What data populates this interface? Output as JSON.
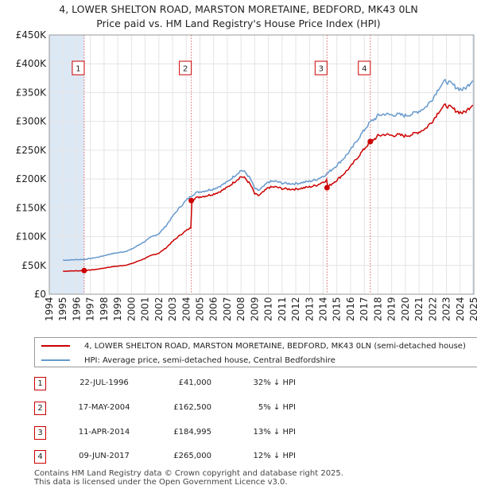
{
  "chart_data": {
    "type": "line",
    "title": "4, LOWER SHELTON ROAD, MARSTON MORETAINE, BEDFORD, MK43 0LN",
    "subtitle": "Price paid vs. HM Land Registry's House Price Index (HPI)",
    "xlim": [
      1994.0,
      2025.0
    ],
    "ylim": [
      0,
      450000
    ],
    "y_ticks": [
      0,
      50000,
      100000,
      150000,
      200000,
      250000,
      300000,
      350000,
      400000,
      450000
    ],
    "y_tick_labels": [
      "£0",
      "£50K",
      "£100K",
      "£150K",
      "£200K",
      "£250K",
      "£300K",
      "£350K",
      "£400K",
      "£450K"
    ],
    "x_ticks": [
      1994,
      1995,
      1996,
      1997,
      1998,
      1999,
      2000,
      2001,
      2002,
      2003,
      2004,
      2005,
      2006,
      2007,
      2008,
      2009,
      2010,
      2011,
      2012,
      2013,
      2014,
      2015,
      2016,
      2017,
      2018,
      2019,
      2020,
      2021,
      2022,
      2023,
      2024,
      2025
    ],
    "x_tick_labels": [
      "1994",
      "1995",
      "1996",
      "1997",
      "1998",
      "1999",
      "2000",
      "2001",
      "2002",
      "2003",
      "2004",
      "2005",
      "2006",
      "2007",
      "2008",
      "2009",
      "2010",
      "2011",
      "2012",
      "2013",
      "2014",
      "2015",
      "2016",
      "2017",
      "2018",
      "2019",
      "2020",
      "2021",
      "2022",
      "2023",
      "2024",
      "2025"
    ],
    "colors": {
      "property": "#cc0000",
      "hpi": "#6699cc",
      "shade": "#dde8f5",
      "marker_line": "#dd6666"
    },
    "hpi_anchors": [
      [
        1995.0,
        59000
      ],
      [
        1996.0,
        60000
      ],
      [
        1996.55,
        60500
      ],
      [
        1997.0,
        62000
      ],
      [
        1997.5,
        64000
      ],
      [
        1998.0,
        67000
      ],
      [
        1998.5,
        70000
      ],
      [
        1999.0,
        72000
      ],
      [
        1999.5,
        74000
      ],
      [
        2000.0,
        78000
      ],
      [
        2000.5,
        85000
      ],
      [
        2001.0,
        92000
      ],
      [
        2001.5,
        100000
      ],
      [
        2002.0,
        105000
      ],
      [
        2002.5,
        118000
      ],
      [
        2003.0,
        135000
      ],
      [
        2003.5,
        150000
      ],
      [
        2004.0,
        163000
      ],
      [
        2004.37,
        171000
      ],
      [
        2004.7,
        176000
      ],
      [
        2005.0,
        178000
      ],
      [
        2005.5,
        180000
      ],
      [
        2006.0,
        183000
      ],
      [
        2006.5,
        188000
      ],
      [
        2007.0,
        195000
      ],
      [
        2007.5,
        205000
      ],
      [
        2008.0,
        215000
      ],
      [
        2008.3,
        212000
      ],
      [
        2008.7,
        200000
      ],
      [
        2009.0,
        183000
      ],
      [
        2009.3,
        180000
      ],
      [
        2009.7,
        188000
      ],
      [
        2010.0,
        195000
      ],
      [
        2010.5,
        196000
      ],
      [
        2011.0,
        193000
      ],
      [
        2011.5,
        192000
      ],
      [
        2012.0,
        192000
      ],
      [
        2012.5,
        194000
      ],
      [
        2013.0,
        196000
      ],
      [
        2013.5,
        199000
      ],
      [
        2014.0,
        205000
      ],
      [
        2014.28,
        209000
      ],
      [
        2014.7,
        218000
      ],
      [
        2015.0,
        224000
      ],
      [
        2015.5,
        236000
      ],
      [
        2016.0,
        250000
      ],
      [
        2016.5,
        268000
      ],
      [
        2017.0,
        285000
      ],
      [
        2017.44,
        299000
      ],
      [
        2017.8,
        305000
      ],
      [
        2018.0,
        310000
      ],
      [
        2018.5,
        313000
      ],
      [
        2019.0,
        311000
      ],
      [
        2019.5,
        312000
      ],
      [
        2020.0,
        310000
      ],
      [
        2020.5,
        313000
      ],
      [
        2021.0,
        318000
      ],
      [
        2021.5,
        325000
      ],
      [
        2022.0,
        340000
      ],
      [
        2022.5,
        360000
      ],
      [
        2022.9,
        370000
      ],
      [
        2023.3,
        366000
      ],
      [
        2023.8,
        358000
      ],
      [
        2024.2,
        355000
      ],
      [
        2024.5,
        360000
      ],
      [
        2024.9,
        372000
      ]
    ],
    "sales": [
      {
        "label": "1",
        "x": 1996.55,
        "price": 41000
      },
      {
        "label": "2",
        "x": 2004.37,
        "price": 162500
      },
      {
        "label": "3",
        "x": 2014.28,
        "price": 184995
      },
      {
        "label": "4",
        "x": 2017.44,
        "price": 265000
      }
    ],
    "legend": [
      {
        "label": "4, LOWER SHELTON ROAD, MARSTON MORETAINE, BEDFORD, MK43 0LN (semi-detached house)"
      },
      {
        "label": "HPI: Average price, semi-detached house, Central Bedfordshire"
      }
    ]
  },
  "transactions": [
    {
      "num": "1",
      "date": "22-JUL-1996",
      "price": "£41,000",
      "hpi": "32% ↓ HPI"
    },
    {
      "num": "2",
      "date": "17-MAY-2004",
      "price": "£162,500",
      "hpi": "5% ↓ HPI"
    },
    {
      "num": "3",
      "date": "11-APR-2014",
      "price": "£184,995",
      "hpi": "13% ↓ HPI"
    },
    {
      "num": "4",
      "date": "09-JUN-2017",
      "price": "£265,000",
      "hpi": "12% ↓ HPI"
    }
  ],
  "footer": {
    "line1": "Contains HM Land Registry data © Crown copyright and database right 2025.",
    "line2": "This data is licensed under the Open Government Licence v3.0."
  }
}
